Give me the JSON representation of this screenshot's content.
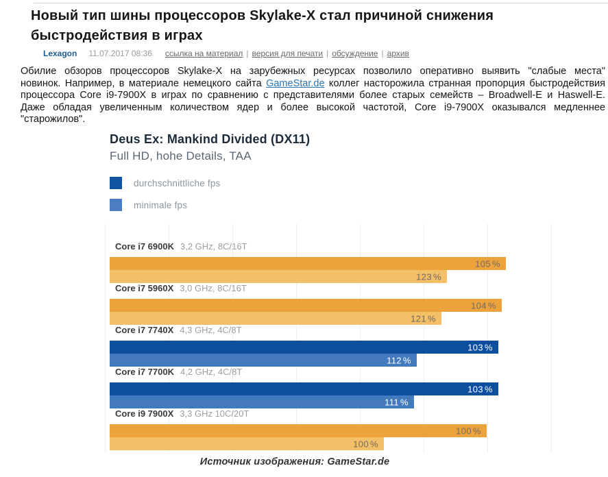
{
  "page": {
    "title": "Новый тип шины процессоров Skylake-X стал причиной снижения быстродействия в играх",
    "byline": {
      "author": "Lexagon",
      "date": "11.07.2017 08:36",
      "separator": "|",
      "links": [
        "ссылка на материал",
        "версия для печати",
        "обсуждение",
        "архив"
      ]
    },
    "paragraph": {
      "before_link": "Обилие обзоров процессоров Skylake-X на зарубежных ресурсах позволило оперативно выявить \"слабые места\" новинок. Например, в материале немецкого сайта ",
      "link": "GameStar.de",
      "after_link": " коллег насторожила странная пропорция быстродействия процессора Core i9-7900X в играх по сравнению с представителями более старых семейств – Broadwell-E и Haswell-E. Даже обладая увеличенным количеством ядер и более высокой частотой, Core i9-7900X оказывался медленнее \"старожилов\"."
    },
    "caption": "Источник изображения: GameStar.de"
  },
  "chart_data": {
    "type": "bar",
    "orientation": "horizontal",
    "title": "Deus Ex: Mankind Divided (DX11)",
    "subtitle": "Full HD, hohe Details, TAA",
    "unit": "%",
    "legend": [
      {
        "label": "durchschnittliche fps",
        "color": "#1254a3"
      },
      {
        "label": "minimale fps",
        "color": "#4a7dc2"
      }
    ],
    "categories": [
      {
        "name": "Core i7 6900K",
        "spec": "3,2 GHz, 8C/16T",
        "scheme": "orange"
      },
      {
        "name": "Core i7 5960X",
        "spec": "3,0 GHz, 8C/16T",
        "scheme": "orange"
      },
      {
        "name": "Core i7 7740X",
        "spec": "4,3 GHz, 4C/8T",
        "scheme": "blue"
      },
      {
        "name": "Core i7 7700K",
        "spec": "4,2 GHz, 4C/8T",
        "scheme": "blue"
      },
      {
        "name": "Core i9 7900X",
        "spec": "3,3 GHz 10C/20T",
        "scheme": "orange"
      }
    ],
    "series": [
      {
        "name": "durchschnittliche fps",
        "values": [
          105,
          104,
          103,
          103,
          100
        ]
      },
      {
        "name": "minimale fps",
        "values": [
          123,
          121,
          112,
          111,
          100
        ]
      }
    ],
    "colors": {
      "orange_avg": "#eda33c",
      "orange_min": "#f3bf67",
      "blue_avg": "#0d4f9e",
      "blue_min": "#4379bd",
      "label_on_orange": "#736a5f",
      "label_on_blue": "#ffffff",
      "grid": "#eeeeee"
    },
    "grid": true,
    "legend_position": "top-left"
  }
}
